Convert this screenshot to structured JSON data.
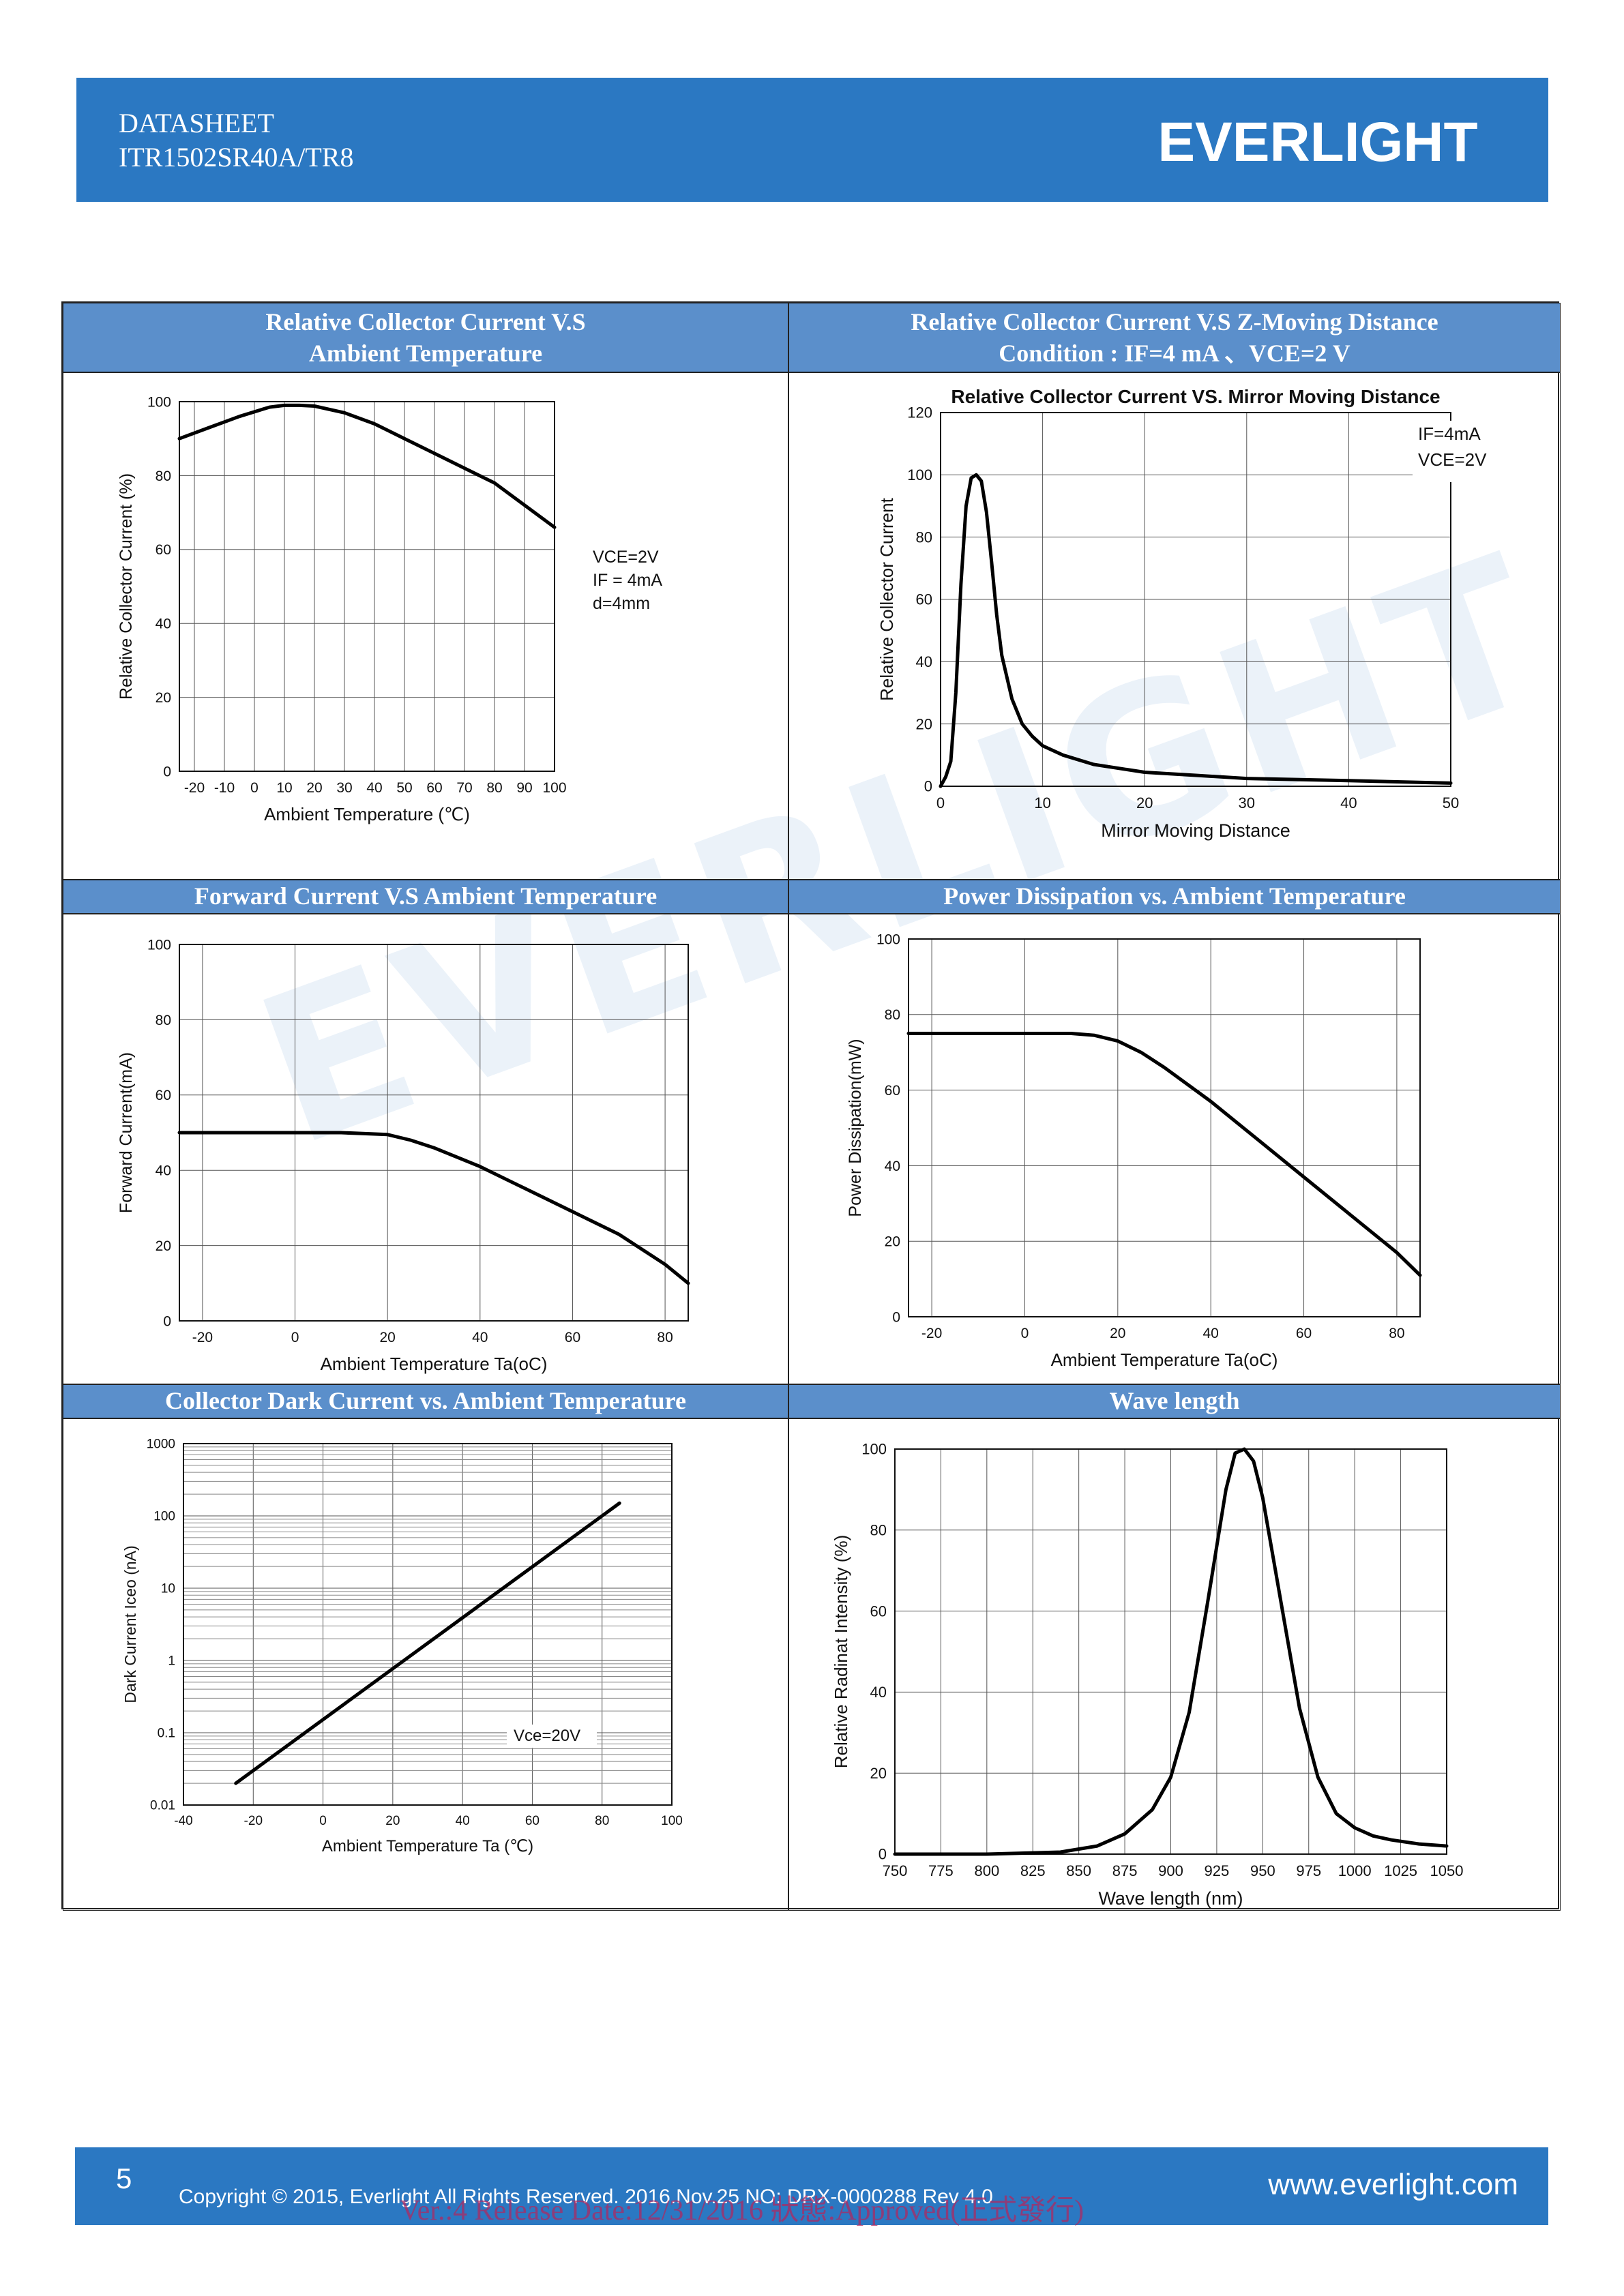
{
  "header": {
    "doc_type": "DATASHEET",
    "part_number": "ITR1502SR40A/TR8",
    "brand_logo": "EVERLIGHT"
  },
  "watermark": "EVERLIGHT",
  "footer": {
    "page": "5",
    "copyright": "Copyright © 2015, Everlight All Rights Reserved. 2016.Nov.25   NO: DRX-0000288   Rev 4.0",
    "website": "www.everlight.com",
    "stamp": "Ver.:4      Release Date:12/31/2016      狀態:Approved(正式發行)"
  },
  "colors": {
    "brand_blue": "#2b78c2",
    "title_blue": "#5b8fcb",
    "stamp": "#ad2a62"
  },
  "panels": {
    "p1": {
      "title_line1": "Relative Collector Current V.S",
      "title_line2": "Ambient Temperature"
    },
    "p2": {
      "title_line1": "Relative Collector Current V.S Z-Moving Distance",
      "title_line2": "Condition : IF=4 mA 、VCE=2 V"
    },
    "p3": {
      "title_line1": "Forward Current V.S Ambient Temperature"
    },
    "p4": {
      "title_line1": "Power Dissipation vs. Ambient Temperature"
    },
    "p5": {
      "title_line1": "Collector Dark Current vs. Ambient Temperature"
    },
    "p6": {
      "title_line1": "Wave length"
    }
  },
  "chart_data": [
    {
      "type": "line",
      "xlabel": "Ambient Temperature (℃)",
      "ylabel": "Relative Collector Current (%)",
      "xlim": [
        -25,
        100
      ],
      "ylim": [
        0,
        100
      ],
      "xticks": [
        -20,
        -10,
        0,
        10,
        20,
        30,
        40,
        50,
        60,
        70,
        80,
        90,
        100
      ],
      "yticks": [
        0,
        20,
        40,
        60,
        80,
        100
      ],
      "grid": true,
      "annotation": [
        "VCE=2V",
        "IF = 4mA",
        "d=4mm"
      ],
      "x": [
        -25,
        -15,
        -5,
        5,
        10,
        15,
        20,
        30,
        40,
        50,
        60,
        70,
        80,
        90,
        100
      ],
      "y": [
        90,
        93,
        96,
        98.5,
        99,
        99,
        98.8,
        97,
        94,
        90,
        86,
        82,
        78,
        72,
        66
      ]
    },
    {
      "type": "line",
      "title": "Relative Collector Current VS. Mirror Moving Distance",
      "xlabel": "Mirror Moving Distance",
      "ylabel": "Relative Collector Current",
      "xlim": [
        0,
        50
      ],
      "ylim": [
        0,
        120
      ],
      "xticks": [
        0,
        10,
        20,
        30,
        40,
        50
      ],
      "yticks": [
        0,
        20,
        40,
        60,
        80,
        100,
        120
      ],
      "grid": true,
      "legend_text": [
        "IF=4mA",
        "VCE=2V"
      ],
      "x": [
        0,
        0.5,
        1,
        1.5,
        2,
        2.5,
        3,
        3.5,
        4,
        4.5,
        5,
        5.5,
        6,
        7,
        8,
        9,
        10,
        12,
        15,
        20,
        25,
        30,
        40,
        50
      ],
      "y": [
        0,
        3,
        8,
        30,
        65,
        90,
        99,
        100,
        98,
        88,
        72,
        55,
        42,
        28,
        20,
        16,
        13,
        10,
        7,
        4.5,
        3.5,
        2.5,
        1.8,
        1
      ]
    },
    {
      "type": "line",
      "xlabel": "Ambient Temperature Ta(oC)",
      "ylabel": "Forward Current(mA)",
      "xlim": [
        -25,
        85
      ],
      "ylim": [
        0,
        100
      ],
      "xticks": [
        -20,
        0,
        20,
        40,
        60,
        80
      ],
      "yticks": [
        0,
        20,
        40,
        60,
        80,
        100
      ],
      "grid": true,
      "x": [
        -25,
        0,
        10,
        20,
        25,
        30,
        40,
        50,
        60,
        70,
        80,
        85
      ],
      "y": [
        50,
        50,
        50,
        49.5,
        48,
        46,
        41,
        35,
        29,
        23,
        15,
        10
      ]
    },
    {
      "type": "line",
      "xlabel": "Ambient Temperature Ta(oC)",
      "ylabel": "Power Dissipation(mW)",
      "xlim": [
        -25,
        85
      ],
      "ylim": [
        0,
        100
      ],
      "xticks": [
        -20,
        0,
        20,
        40,
        60,
        80
      ],
      "yticks": [
        0,
        20,
        40,
        60,
        80,
        100
      ],
      "grid": true,
      "x": [
        -25,
        0,
        10,
        15,
        20,
        25,
        30,
        40,
        50,
        60,
        70,
        80,
        85
      ],
      "y": [
        75,
        75,
        75,
        74.5,
        73,
        70,
        66,
        57,
        47,
        37,
        27,
        17,
        11
      ]
    },
    {
      "type": "line",
      "xlabel": "Ambient Temperature Ta (℃)",
      "ylabel": "Dark Current Iceo (nA)",
      "xlim": [
        -40,
        100
      ],
      "ylim": [
        0.01,
        1000
      ],
      "yscale": "log",
      "xticks": [
        -40,
        -20,
        0,
        20,
        40,
        60,
        80,
        100
      ],
      "yticks": [
        "0.01",
        "0.1",
        "1",
        "10",
        "100",
        "1000"
      ],
      "grid": true,
      "annotation": [
        "Vce=20V"
      ],
      "x": [
        -25,
        85
      ],
      "y": [
        0.02,
        150
      ]
    },
    {
      "type": "line",
      "xlabel": "Wave length (nm)",
      "ylabel": "Relative Radinat Intensity (%)",
      "xlim": [
        750,
        1050
      ],
      "ylim": [
        0,
        100
      ],
      "xticks": [
        750,
        775,
        800,
        825,
        850,
        875,
        900,
        925,
        950,
        975,
        1000,
        1025,
        1050
      ],
      "yticks": [
        0,
        20,
        40,
        60,
        80,
        100
      ],
      "grid": true,
      "x": [
        750,
        800,
        840,
        860,
        875,
        890,
        900,
        910,
        920,
        930,
        935,
        940,
        945,
        950,
        960,
        970,
        980,
        990,
        1000,
        1010,
        1020,
        1035,
        1050
      ],
      "y": [
        0,
        0,
        0.5,
        2,
        5,
        11,
        19,
        35,
        62,
        90,
        99,
        100,
        97,
        88,
        62,
        36,
        19,
        10,
        6.5,
        4.5,
        3.5,
        2.5,
        2
      ]
    }
  ]
}
